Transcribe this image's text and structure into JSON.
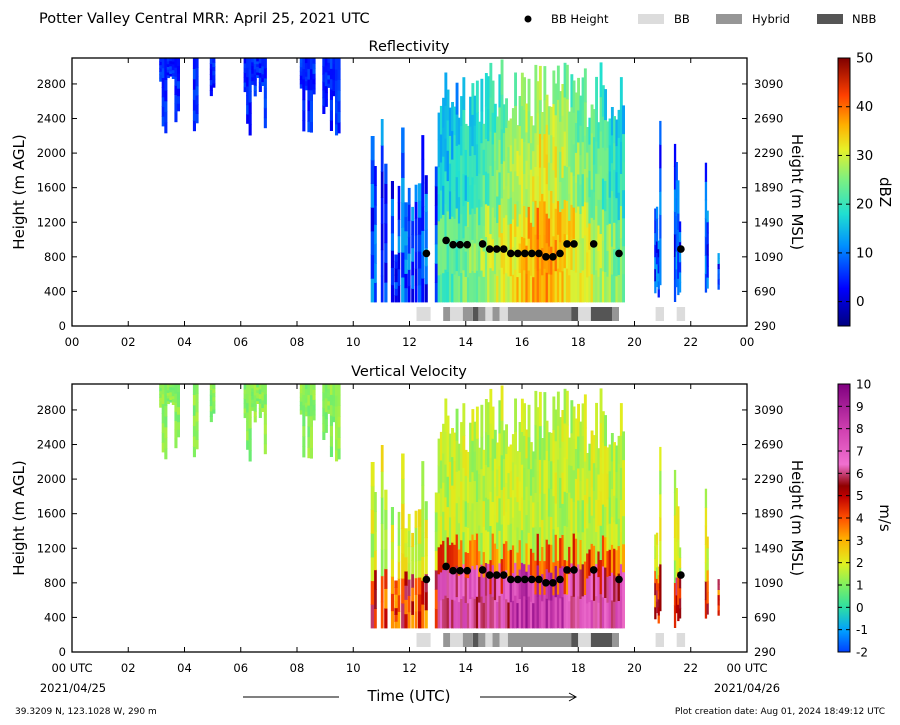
{
  "header": {
    "title": "Potter Valley Central MRR:  April 25, 2021 UTC",
    "legend": [
      {
        "label": "BB Height",
        "kind": "dot",
        "color": "#000000"
      },
      {
        "label": "BB",
        "kind": "box",
        "color": "#dcdcdc"
      },
      {
        "label": "Hybrid",
        "kind": "box",
        "color": "#969696"
      },
      {
        "label": "NBB",
        "kind": "box",
        "color": "#555555"
      }
    ]
  },
  "footer": {
    "location": "39.3209 N, 123.1028 W, 290 m",
    "creation": "Plot creation date: Aug 01, 2024 18:49:12 UTC",
    "xlabel": "Time (UTC)",
    "start_date": "2021/04/25",
    "end_date": "2021/04/26"
  },
  "chart_data": [
    {
      "type": "heatmap",
      "title": "Reflectivity",
      "ylabel": "Height (m AGL)",
      "ylabel_right": "Height (m MSL)",
      "colorbar_label": "dBZ",
      "colorbar_ticks": [
        "0",
        "10",
        "20",
        "30",
        "40",
        "50"
      ],
      "colorbar_range": [
        -5,
        50
      ],
      "xlim": [
        0,
        24
      ],
      "ylim": [
        0,
        3100
      ],
      "x_ticks": [
        "00",
        "02",
        "04",
        "06",
        "08",
        "10",
        "12",
        "14",
        "16",
        "18",
        "20",
        "22",
        "00"
      ],
      "y_ticks": [
        "0",
        "400",
        "800",
        "1200",
        "1600",
        "2000",
        "2400",
        "2800"
      ],
      "y_ticks_right": [
        "290",
        "690",
        "1090",
        "1490",
        "1890",
        "2290",
        "2690",
        "3090"
      ],
      "bb_height": {
        "x": [
          12.6,
          13.3,
          13.55,
          13.8,
          14.05,
          14.6,
          14.85,
          15.1,
          15.35,
          15.6,
          15.85,
          16.1,
          16.35,
          16.6,
          16.85,
          17.1,
          17.35,
          17.6,
          17.85,
          18.55,
          19.45,
          21.65
        ],
        "y": [
          840,
          990,
          940,
          940,
          940,
          950,
          890,
          890,
          890,
          840,
          840,
          840,
          840,
          840,
          800,
          800,
          840,
          950,
          950,
          950,
          840,
          890
        ]
      },
      "bb_bands": [
        {
          "start": 12.25,
          "end": 12.75,
          "class": "BB"
        },
        {
          "start": 13.2,
          "end": 13.45,
          "class": "Hybrid"
        },
        {
          "start": 13.45,
          "end": 13.9,
          "class": "BB"
        },
        {
          "start": 13.9,
          "end": 14.25,
          "class": "Hybrid"
        },
        {
          "start": 14.25,
          "end": 14.45,
          "class": "NBB"
        },
        {
          "start": 14.45,
          "end": 14.7,
          "class": "Hybrid"
        },
        {
          "start": 14.7,
          "end": 14.95,
          "class": "BB"
        },
        {
          "start": 14.95,
          "end": 15.2,
          "class": "Hybrid"
        },
        {
          "start": 15.2,
          "end": 15.5,
          "class": "BB"
        },
        {
          "start": 15.5,
          "end": 17.75,
          "class": "Hybrid"
        },
        {
          "start": 17.75,
          "end": 18.0,
          "class": "NBB"
        },
        {
          "start": 18.0,
          "end": 18.45,
          "class": "BB"
        },
        {
          "start": 18.45,
          "end": 19.2,
          "class": "NBB"
        },
        {
          "start": 19.2,
          "end": 19.45,
          "class": "Hybrid"
        },
        {
          "start": 20.75,
          "end": 21.05,
          "class": "BB"
        },
        {
          "start": 21.5,
          "end": 21.8,
          "class": "BB"
        }
      ]
    },
    {
      "type": "heatmap",
      "title": "Vertical Velocity",
      "ylabel": "Height (m AGL)",
      "ylabel_right": "Height (m MSL)",
      "colorbar_label": "m/s",
      "colorbar_ticks": [
        "-2",
        "-1",
        "0",
        "1",
        "2",
        "3",
        "4",
        "5",
        "6",
        "7",
        "8",
        "9",
        "10"
      ],
      "colorbar_range": [
        -2,
        10
      ],
      "xlim": [
        0,
        24
      ],
      "ylim": [
        0,
        3100
      ],
      "x_ticks": [
        "00 UTC",
        "02",
        "04",
        "06",
        "08",
        "10",
        "12",
        "14",
        "16",
        "18",
        "20",
        "22",
        "00 UTC"
      ],
      "y_ticks": [
        "0",
        "400",
        "800",
        "1200",
        "1600",
        "2000",
        "2400",
        "2800"
      ],
      "y_ticks_right": [
        "290",
        "690",
        "1090",
        "1490",
        "1890",
        "2290",
        "2690",
        "3090"
      ],
      "bb_height": {
        "x": [
          12.6,
          13.3,
          13.55,
          13.8,
          14.05,
          14.6,
          14.85,
          15.1,
          15.35,
          15.6,
          15.85,
          16.1,
          16.35,
          16.6,
          16.85,
          17.1,
          17.35,
          17.6,
          17.85,
          18.55,
          19.45,
          21.65
        ],
        "y": [
          840,
          990,
          940,
          940,
          940,
          950,
          890,
          890,
          890,
          840,
          840,
          840,
          840,
          840,
          800,
          800,
          840,
          950,
          950,
          950,
          840,
          890
        ]
      },
      "bb_bands": [
        {
          "start": 12.25,
          "end": 12.75,
          "class": "BB"
        },
        {
          "start": 13.2,
          "end": 13.45,
          "class": "Hybrid"
        },
        {
          "start": 13.45,
          "end": 13.9,
          "class": "BB"
        },
        {
          "start": 13.9,
          "end": 14.25,
          "class": "Hybrid"
        },
        {
          "start": 14.25,
          "end": 14.45,
          "class": "NBB"
        },
        {
          "start": 14.45,
          "end": 14.7,
          "class": "Hybrid"
        },
        {
          "start": 14.7,
          "end": 14.95,
          "class": "BB"
        },
        {
          "start": 14.95,
          "end": 15.2,
          "class": "Hybrid"
        },
        {
          "start": 15.2,
          "end": 15.5,
          "class": "BB"
        },
        {
          "start": 15.5,
          "end": 17.75,
          "class": "Hybrid"
        },
        {
          "start": 17.75,
          "end": 18.0,
          "class": "NBB"
        },
        {
          "start": 18.0,
          "end": 18.45,
          "class": "BB"
        },
        {
          "start": 18.45,
          "end": 19.2,
          "class": "NBB"
        },
        {
          "start": 19.2,
          "end": 19.45,
          "class": "Hybrid"
        },
        {
          "start": 20.75,
          "end": 21.05,
          "class": "BB"
        },
        {
          "start": 21.5,
          "end": 21.8,
          "class": "BB"
        }
      ]
    }
  ]
}
